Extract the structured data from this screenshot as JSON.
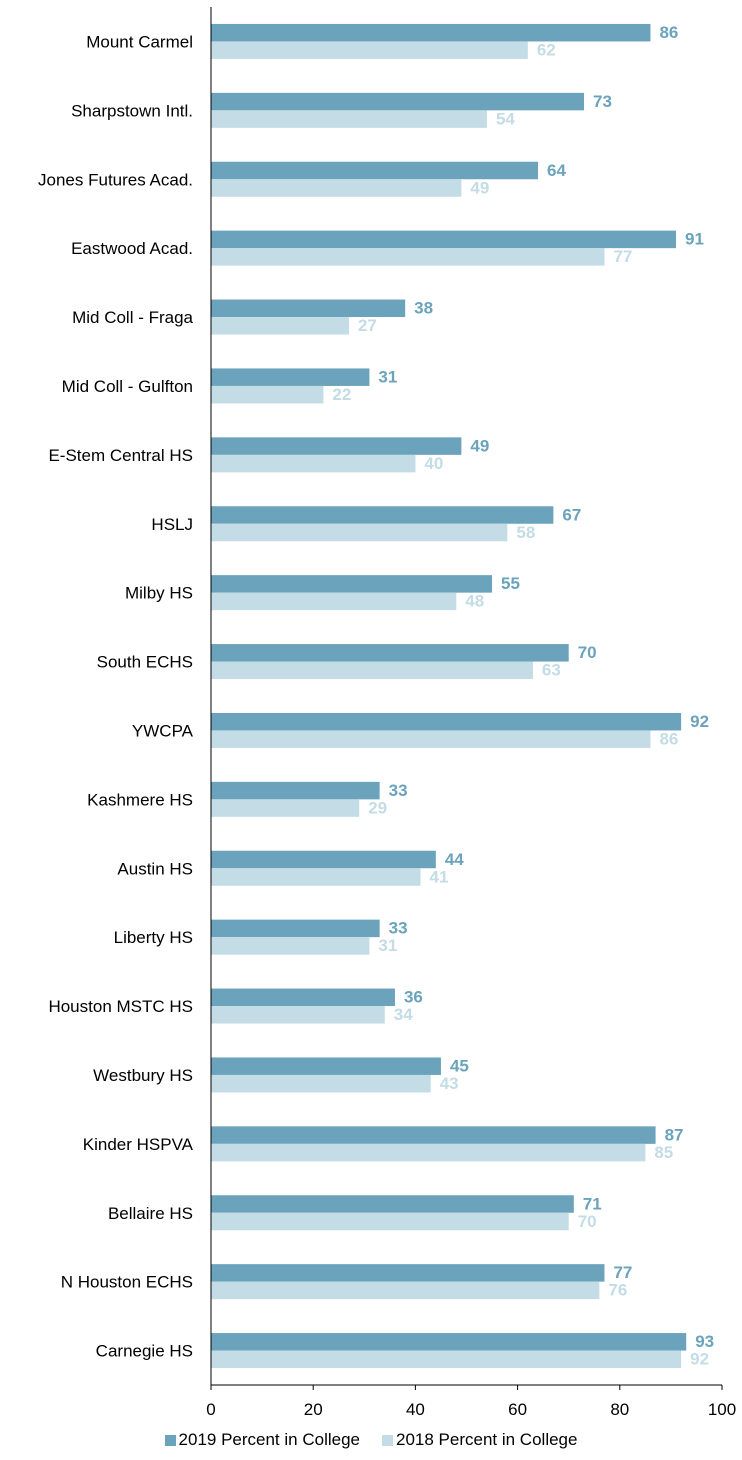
{
  "chart_data": {
    "type": "bar",
    "orientation": "horizontal",
    "categories": [
      "Mount Carmel",
      "Sharpstown Intl.",
      "Jones Futures Acad.",
      "Eastwood Acad.",
      "Mid Coll - Fraga",
      "Mid Coll - Gulfton",
      "E-Stem Central HS",
      "HSLJ",
      "Milby HS",
      "South ECHS",
      "YWCPA",
      "Kashmere HS",
      "Austin HS",
      "Liberty HS",
      "Houston MSTC HS",
      "Westbury HS",
      "Kinder HSPVA",
      "Bellaire HS",
      "N Houston ECHS",
      "Carnegie HS"
    ],
    "series": [
      {
        "name": "2019 Percent in College",
        "color": "#6aa3bb",
        "values": [
          86,
          73,
          64,
          91,
          38,
          31,
          49,
          67,
          55,
          70,
          92,
          33,
          44,
          33,
          36,
          45,
          87,
          71,
          77,
          93
        ]
      },
      {
        "name": "2018 Percent in College",
        "color": "#c3dce5",
        "values": [
          62,
          54,
          49,
          77,
          27,
          22,
          40,
          58,
          48,
          63,
          86,
          29,
          41,
          31,
          34,
          43,
          85,
          70,
          76,
          92
        ]
      }
    ],
    "xlim": [
      0,
      100
    ],
    "xticks": [
      0,
      20,
      40,
      60,
      80,
      100
    ],
    "grid": false,
    "legend_position": "bottom"
  }
}
